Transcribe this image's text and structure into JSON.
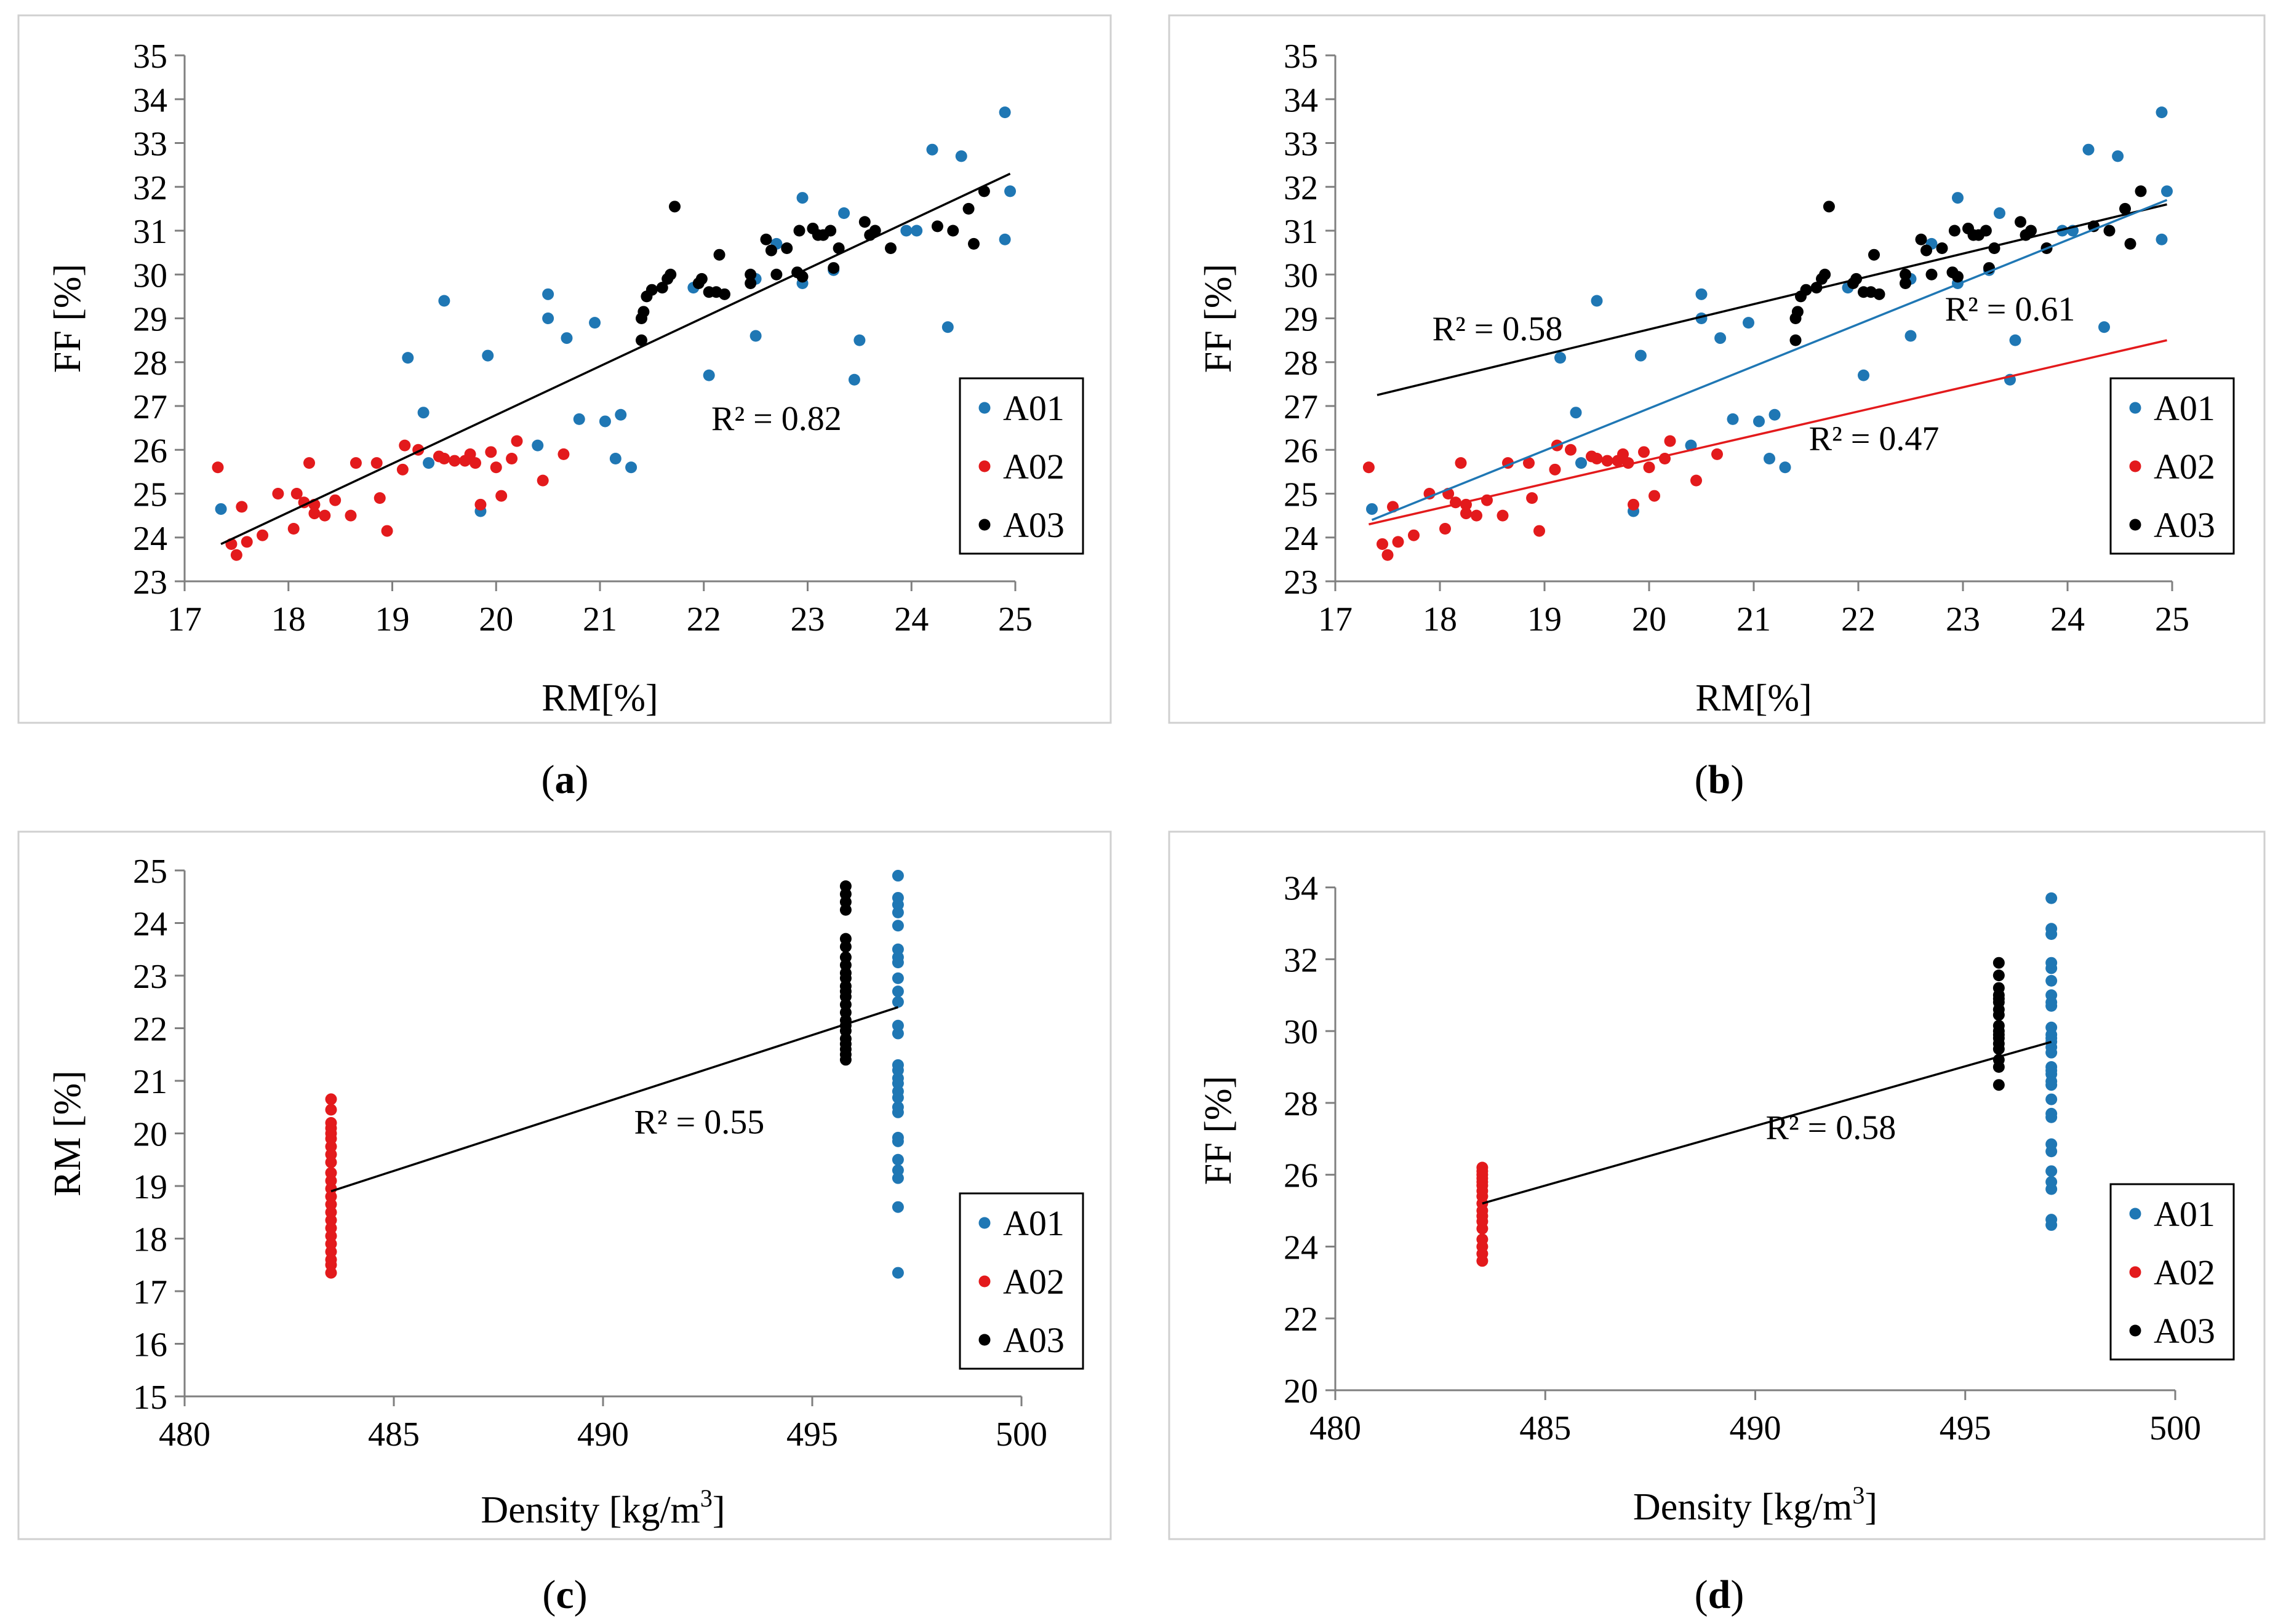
{
  "colors": {
    "A01": "#1f77b4",
    "A02": "#e31a1c",
    "A03": "#000000",
    "trend_overall": "#000000"
  },
  "panel_labels": {
    "a": "a",
    "b": "b",
    "c": "c",
    "d": "d"
  },
  "chart_data": [
    {
      "id": "a",
      "type": "scatter",
      "xlabel": "RM[%]",
      "ylabel": "FF [%]",
      "xlim": [
        17,
        25
      ],
      "ylim": [
        23,
        35
      ],
      "xticks": [
        17,
        18,
        19,
        20,
        21,
        22,
        23,
        24,
        25
      ],
      "yticks": [
        23,
        24,
        25,
        26,
        27,
        28,
        29,
        30,
        31,
        32,
        33,
        34,
        35
      ],
      "legend": [
        "A01",
        "A02",
        "A03"
      ],
      "series": [
        {
          "name": "A01",
          "color_key": "A01",
          "points": [
            [
              17.35,
              24.65
            ],
            [
              19.15,
              28.1
            ],
            [
              19.3,
              26.85
            ],
            [
              19.35,
              25.7
            ],
            [
              19.5,
              29.4
            ],
            [
              19.85,
              24.6
            ],
            [
              19.92,
              28.15
            ],
            [
              20.4,
              26.1
            ],
            [
              20.5,
              29.55
            ],
            [
              20.5,
              29.0
            ],
            [
              20.68,
              28.55
            ],
            [
              20.8,
              26.7
            ],
            [
              20.95,
              28.9
            ],
            [
              21.05,
              26.65
            ],
            [
              21.2,
              26.8
            ],
            [
              21.15,
              25.8
            ],
            [
              21.3,
              25.6
            ],
            [
              21.9,
              29.7
            ],
            [
              22.05,
              27.7
            ],
            [
              22.5,
              28.6
            ],
            [
              22.5,
              29.9
            ],
            [
              22.7,
              30.7
            ],
            [
              22.95,
              31.75
            ],
            [
              22.95,
              29.8
            ],
            [
              23.25,
              30.1
            ],
            [
              23.35,
              31.4
            ],
            [
              23.45,
              27.6
            ],
            [
              23.5,
              28.5
            ],
            [
              23.95,
              31.0
            ],
            [
              24.05,
              31.0
            ],
            [
              24.2,
              32.85
            ],
            [
              24.35,
              28.8
            ],
            [
              24.48,
              32.7
            ],
            [
              24.9,
              33.7
            ],
            [
              24.95,
              31.9
            ],
            [
              24.9,
              30.8
            ]
          ]
        },
        {
          "name": "A02",
          "color_key": "A02",
          "points": [
            [
              17.32,
              25.6
            ],
            [
              17.45,
              23.85
            ],
            [
              17.5,
              23.6
            ],
            [
              17.55,
              24.7
            ],
            [
              17.6,
              23.9
            ],
            [
              17.75,
              24.05
            ],
            [
              17.9,
              25.0
            ],
            [
              18.05,
              24.2
            ],
            [
              18.08,
              25.0
            ],
            [
              18.15,
              24.8
            ],
            [
              18.2,
              25.7
            ],
            [
              18.25,
              24.55
            ],
            [
              18.25,
              24.75
            ],
            [
              18.35,
              24.5
            ],
            [
              18.45,
              24.85
            ],
            [
              18.6,
              24.5
            ],
            [
              18.65,
              25.7
            ],
            [
              18.85,
              25.7
            ],
            [
              18.88,
              24.9
            ],
            [
              18.95,
              24.15
            ],
            [
              19.1,
              25.55
            ],
            [
              19.12,
              26.1
            ],
            [
              19.25,
              26.0
            ],
            [
              19.45,
              25.85
            ],
            [
              19.5,
              25.8
            ],
            [
              19.6,
              25.75
            ],
            [
              19.7,
              25.75
            ],
            [
              19.75,
              25.9
            ],
            [
              19.8,
              25.7
            ],
            [
              19.85,
              24.75
            ],
            [
              19.95,
              25.95
            ],
            [
              20.0,
              25.6
            ],
            [
              20.05,
              24.95
            ],
            [
              20.15,
              25.8
            ],
            [
              20.2,
              26.2
            ],
            [
              20.45,
              25.3
            ],
            [
              20.65,
              25.9
            ]
          ]
        },
        {
          "name": "A03",
          "color_key": "A03",
          "points": [
            [
              21.4,
              28.5
            ],
            [
              21.4,
              29.0
            ],
            [
              21.42,
              29.15
            ],
            [
              21.45,
              29.5
            ],
            [
              21.5,
              29.65
            ],
            [
              21.6,
              29.7
            ],
            [
              21.65,
              29.9
            ],
            [
              21.68,
              30.0
            ],
            [
              21.72,
              31.55
            ],
            [
              21.95,
              29.8
            ],
            [
              21.98,
              29.9
            ],
            [
              22.05,
              29.6
            ],
            [
              22.12,
              29.6
            ],
            [
              22.15,
              30.45
            ],
            [
              22.2,
              29.55
            ],
            [
              22.45,
              29.8
            ],
            [
              22.45,
              30.0
            ],
            [
              22.6,
              30.8
            ],
            [
              22.65,
              30.55
            ],
            [
              22.7,
              30.0
            ],
            [
              22.8,
              30.6
            ],
            [
              22.9,
              30.05
            ],
            [
              22.92,
              31.0
            ],
            [
              22.95,
              29.95
            ],
            [
              23.05,
              31.05
            ],
            [
              23.1,
              30.9
            ],
            [
              23.15,
              30.9
            ],
            [
              23.22,
              31.0
            ],
            [
              23.25,
              30.15
            ],
            [
              23.3,
              30.6
            ],
            [
              23.55,
              31.2
            ],
            [
              23.6,
              30.9
            ],
            [
              23.65,
              31.0
            ],
            [
              23.8,
              30.6
            ],
            [
              24.25,
              31.1
            ],
            [
              24.4,
              31.0
            ],
            [
              24.55,
              31.5
            ],
            [
              24.6,
              30.7
            ],
            [
              24.7,
              31.9
            ]
          ]
        }
      ],
      "trendlines": [
        {
          "color_key": "trend_overall",
          "x": [
            17.35,
            24.95
          ],
          "y": [
            23.85,
            32.3
          ]
        }
      ],
      "annotations": [
        {
          "text": "R² = 0.82",
          "x": 22.7,
          "y": 26.45,
          "color_key": "A03"
        }
      ]
    },
    {
      "id": "b",
      "type": "scatter",
      "xlabel": "RM[%]",
      "ylabel": "FF [%]",
      "xlim": [
        17,
        25
      ],
      "ylim": [
        23,
        35
      ],
      "xticks": [
        17,
        18,
        19,
        20,
        21,
        22,
        23,
        24,
        25
      ],
      "yticks": [
        23,
        24,
        25,
        26,
        27,
        28,
        29,
        30,
        31,
        32,
        33,
        34,
        35
      ],
      "legend": [
        "A01",
        "A02",
        "A03"
      ],
      "series_ref": "a",
      "trendlines": [
        {
          "color_key": "A03",
          "x": [
            17.4,
            24.95
          ],
          "y": [
            27.25,
            31.6
          ]
        },
        {
          "color_key": "A01",
          "x": [
            17.35,
            24.95
          ],
          "y": [
            24.4,
            31.7
          ]
        },
        {
          "color_key": "A02",
          "x": [
            17.32,
            24.95
          ],
          "y": [
            24.3,
            28.5
          ]
        }
      ],
      "annotations": [
        {
          "text": "R² = 0.58",
          "x": 18.55,
          "y": 28.5,
          "color_key": "A03"
        },
        {
          "text": "R² = 0.61",
          "x": 23.45,
          "y": 28.95,
          "color_key": "A01"
        },
        {
          "text": "R² = 0.47",
          "x": 22.15,
          "y": 26.0,
          "color_key": "A02"
        }
      ]
    },
    {
      "id": "c",
      "type": "scatter",
      "xlabel": "Density [kg/m",
      "xlabel_sup": "3",
      "xlabel_end": "]",
      "ylabel": "RM [%]",
      "xlim": [
        480,
        500
      ],
      "ylim": [
        15,
        25
      ],
      "xticks": [
        480,
        485,
        490,
        495,
        500
      ],
      "yticks": [
        15,
        16,
        17,
        18,
        19,
        20,
        21,
        22,
        23,
        24,
        25
      ],
      "legend": [
        "A01",
        "A02",
        "A03"
      ],
      "series": [
        {
          "name": "A02",
          "color_key": "A02",
          "x": 483.5,
          "y": [
            17.35,
            17.5,
            17.6,
            17.75,
            17.9,
            18.05,
            18.2,
            18.35,
            18.5,
            18.65,
            18.8,
            18.95,
            19.1,
            19.25,
            19.45,
            19.6,
            19.75,
            19.9,
            20.0,
            20.1,
            20.2,
            20.45,
            20.65
          ]
        },
        {
          "name": "A03",
          "color_key": "A03",
          "x": 495.8,
          "y": [
            21.4,
            21.5,
            21.6,
            21.7,
            21.8,
            21.95,
            22.05,
            22.15,
            22.3,
            22.45,
            22.6,
            22.7,
            22.8,
            22.95,
            23.05,
            23.2,
            23.35,
            23.55,
            23.7,
            24.25,
            24.4,
            24.55,
            24.7
          ]
        },
        {
          "name": "A01",
          "color_key": "A01",
          "x": 497.05,
          "y": [
            17.35,
            18.6,
            19.15,
            19.3,
            19.5,
            19.85,
            19.92,
            20.4,
            20.5,
            20.68,
            20.8,
            20.95,
            21.05,
            21.2,
            21.3,
            21.9,
            22.05,
            22.5,
            22.7,
            22.95,
            23.25,
            23.35,
            23.5,
            23.95,
            24.2,
            24.35,
            24.48,
            24.9
          ]
        }
      ],
      "trendlines": [
        {
          "color_key": "trend_overall",
          "x": [
            483.5,
            497.05
          ],
          "y": [
            18.9,
            22.4
          ]
        }
      ],
      "annotations": [
        {
          "text": "R² = 0.55",
          "x": 492.3,
          "y": 20.0,
          "color_key": "A03"
        }
      ]
    },
    {
      "id": "d",
      "type": "scatter",
      "xlabel": "Density [kg/m",
      "xlabel_sup": "3",
      "xlabel_end": "]",
      "ylabel": "FF [%]",
      "xlim": [
        480,
        500
      ],
      "ylim": [
        20,
        34
      ],
      "ylim_display_top": 35.5,
      "xticks": [
        480,
        485,
        490,
        495,
        500
      ],
      "yticks": [
        20,
        22,
        24,
        26,
        28,
        30,
        32,
        34
      ],
      "legend": [
        "A01",
        "A02",
        "A03"
      ],
      "series": [
        {
          "name": "A02",
          "color_key": "A02",
          "x": 483.5,
          "y": [
            23.6,
            23.8,
            24.0,
            24.2,
            24.5,
            24.7,
            24.85,
            25.0,
            25.2,
            25.4,
            25.55,
            25.7,
            25.8,
            25.9,
            26.0,
            26.1,
            26.2
          ]
        },
        {
          "name": "A03",
          "color_key": "A03",
          "x": 495.8,
          "y": [
            28.5,
            29.0,
            29.2,
            29.5,
            29.65,
            29.8,
            29.9,
            30.0,
            30.15,
            30.45,
            30.6,
            30.8,
            30.9,
            31.0,
            31.2,
            31.55,
            31.9
          ]
        },
        {
          "name": "A01",
          "color_key": "A01",
          "x": 497.05,
          "y": [
            24.6,
            24.75,
            25.6,
            25.8,
            26.1,
            26.65,
            26.85,
            27.6,
            27.7,
            28.1,
            28.5,
            28.6,
            28.8,
            28.9,
            29.0,
            29.4,
            29.55,
            29.7,
            29.8,
            29.9,
            30.1,
            30.7,
            30.8,
            31.0,
            31.4,
            31.75,
            31.9,
            32.7,
            32.85,
            33.7
          ]
        }
      ],
      "trendlines": [
        {
          "color_key": "trend_overall",
          "x": [
            483.5,
            497.05
          ],
          "y": [
            25.2,
            29.7
          ]
        }
      ],
      "annotations": [
        {
          "text": "R² = 0.58",
          "x": 491.8,
          "y": 27.0,
          "color_key": "A03"
        }
      ]
    }
  ]
}
